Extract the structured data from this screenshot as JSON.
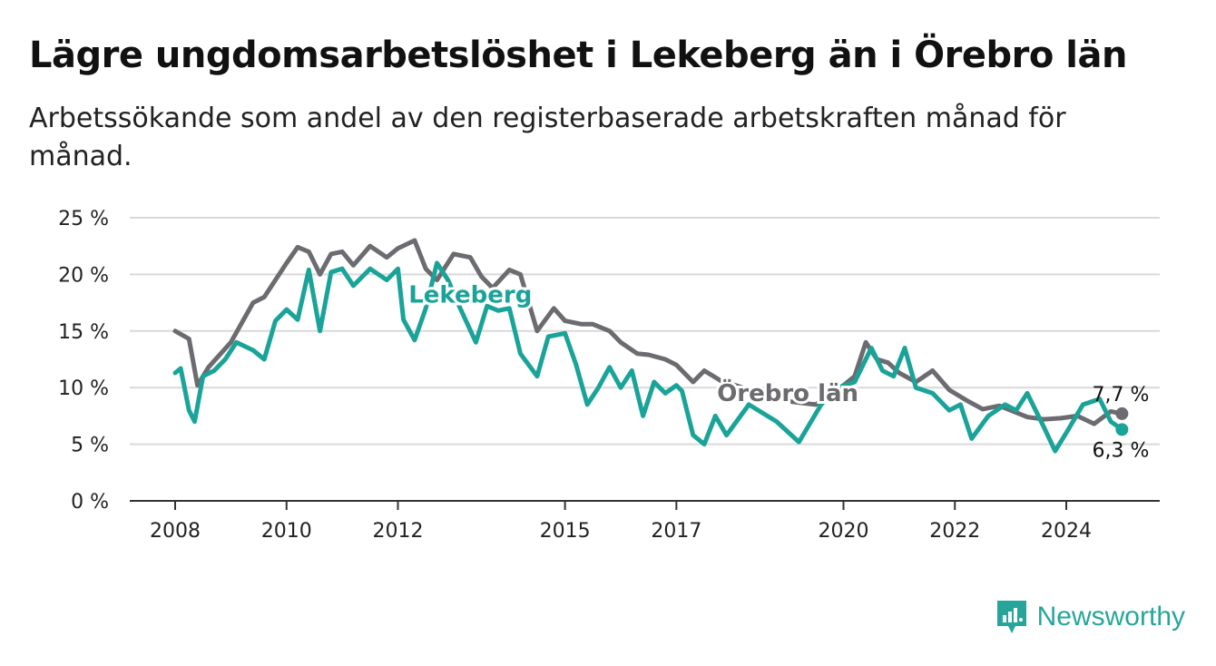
{
  "title": "Lägre ungdomsarbetslöshet i Lekeberg än i Örebro län",
  "subtitle": "Arbetssökande som andel av den registerbaserade arbetskraften månad för månad.",
  "brand": {
    "name": "Newsworthy",
    "icon": "newsworthy-logo-icon",
    "color": "#26a69a"
  },
  "chart_data": {
    "type": "line",
    "title": "Lägre ungdomsarbetslöshet i Lekeberg än i Örebro län",
    "xlabel": "",
    "ylabel": "",
    "ylim": [
      0,
      25
    ],
    "xlim": [
      2007.9,
      2025.9
    ],
    "yticks": [
      0,
      5,
      10,
      15,
      20,
      25
    ],
    "ytick_labels": [
      "0 %",
      "5 %",
      "10 %",
      "15 %",
      "20 %",
      "25 %"
    ],
    "xticks": [
      2008,
      2010,
      2012,
      2015,
      2017,
      2020,
      2022,
      2024
    ],
    "xtick_labels": [
      "2008",
      "2010",
      "2012",
      "2015",
      "2017",
      "2020",
      "2022",
      "2024"
    ],
    "grid": true,
    "legend": "inline labels",
    "series": [
      {
        "name": "Örebro län",
        "color": "#6b6b70",
        "end_label": "7,7 %",
        "x": [
          2008.0,
          2008.25,
          2008.4,
          2008.6,
          2009.0,
          2009.4,
          2009.6,
          2010.0,
          2010.2,
          2010.4,
          2010.6,
          2010.8,
          2011.0,
          2011.2,
          2011.5,
          2011.8,
          2012.0,
          2012.3,
          2012.5,
          2012.7,
          2013.0,
          2013.3,
          2013.5,
          2013.7,
          2014.0,
          2014.2,
          2014.5,
          2014.8,
          2015.0,
          2015.3,
          2015.5,
          2015.8,
          2016.0,
          2016.3,
          2016.5,
          2016.8,
          2017.0,
          2017.3,
          2017.5,
          2017.8,
          2018.0,
          2018.5,
          2019.0,
          2019.5,
          2020.0,
          2020.2,
          2020.4,
          2020.6,
          2020.8,
          2021.0,
          2021.3,
          2021.6,
          2021.9,
          2022.2,
          2022.5,
          2022.8,
          2023.0,
          2023.3,
          2023.6,
          2023.9,
          2024.2,
          2024.5,
          2024.8,
          2025.0
        ],
        "y": [
          15.0,
          14.3,
          10.2,
          11.8,
          14.0,
          17.5,
          18.0,
          21.0,
          22.4,
          22.0,
          20.0,
          21.8,
          22.0,
          20.8,
          22.5,
          21.5,
          22.3,
          23.0,
          20.5,
          19.5,
          21.8,
          21.5,
          19.8,
          18.8,
          20.4,
          20.0,
          15.0,
          17.0,
          15.9,
          15.6,
          15.6,
          15.0,
          14.0,
          13.0,
          12.9,
          12.5,
          12.0,
          10.5,
          11.5,
          10.6,
          10.3,
          9.5,
          8.8,
          8.5,
          10.2,
          11.0,
          14.0,
          12.5,
          12.2,
          11.3,
          10.5,
          11.5,
          9.8,
          8.9,
          8.1,
          8.4,
          8.0,
          7.4,
          7.2,
          7.3,
          7.5,
          6.8,
          7.9,
          7.7
        ]
      },
      {
        "name": "Lekeberg",
        "color": "#1aa399",
        "end_label": "6,3 %",
        "x": [
          2008.0,
          2008.1,
          2008.25,
          2008.35,
          2008.5,
          2008.7,
          2008.9,
          2009.1,
          2009.4,
          2009.6,
          2009.8,
          2010.0,
          2010.2,
          2010.4,
          2010.6,
          2010.8,
          2011.0,
          2011.2,
          2011.5,
          2011.8,
          2012.0,
          2012.1,
          2012.3,
          2012.5,
          2012.7,
          2012.9,
          2013.1,
          2013.4,
          2013.6,
          2013.8,
          2014.0,
          2014.2,
          2014.5,
          2014.7,
          2015.0,
          2015.2,
          2015.4,
          2015.6,
          2015.8,
          2016.0,
          2016.2,
          2016.4,
          2016.6,
          2016.8,
          2017.0,
          2017.1,
          2017.3,
          2017.5,
          2017.7,
          2017.9,
          2018.3,
          2018.8,
          2019.2,
          2019.6,
          2019.9,
          2020.2,
          2020.5,
          2020.7,
          2020.9,
          2021.1,
          2021.3,
          2021.6,
          2021.9,
          2022.1,
          2022.3,
          2022.6,
          2022.9,
          2023.1,
          2023.3,
          2023.6,
          2023.8,
          2024.0,
          2024.3,
          2024.6,
          2024.8,
          2025.0
        ],
        "y": [
          11.3,
          11.7,
          8.0,
          7.0,
          11.0,
          11.5,
          12.5,
          14.0,
          13.3,
          12.5,
          15.9,
          16.9,
          16.0,
          20.4,
          15.0,
          20.2,
          20.5,
          19.0,
          20.5,
          19.5,
          20.5,
          16.0,
          14.2,
          17.0,
          21.0,
          19.5,
          17.2,
          14.0,
          17.2,
          16.8,
          17.0,
          13.0,
          11.0,
          14.5,
          14.8,
          12.0,
          8.5,
          10.0,
          11.8,
          10.0,
          11.5,
          7.5,
          10.5,
          9.5,
          10.2,
          9.7,
          5.8,
          5.0,
          7.5,
          5.8,
          8.5,
          7.0,
          5.2,
          8.5,
          10.0,
          10.5,
          13.5,
          11.5,
          11.0,
          13.5,
          10.0,
          9.5,
          8.0,
          8.5,
          5.5,
          7.5,
          8.5,
          8.0,
          9.5,
          6.5,
          4.4,
          6.0,
          8.5,
          9.0,
          7.0,
          6.3
        ]
      }
    ],
    "annotations": [
      {
        "text": "Lekeberg",
        "series": "Lekeberg",
        "x": 2013.3,
        "y": 17.5
      },
      {
        "text": "Örebro län",
        "series": "Örebro län",
        "x": 2019.0,
        "y": 8.8
      }
    ]
  }
}
